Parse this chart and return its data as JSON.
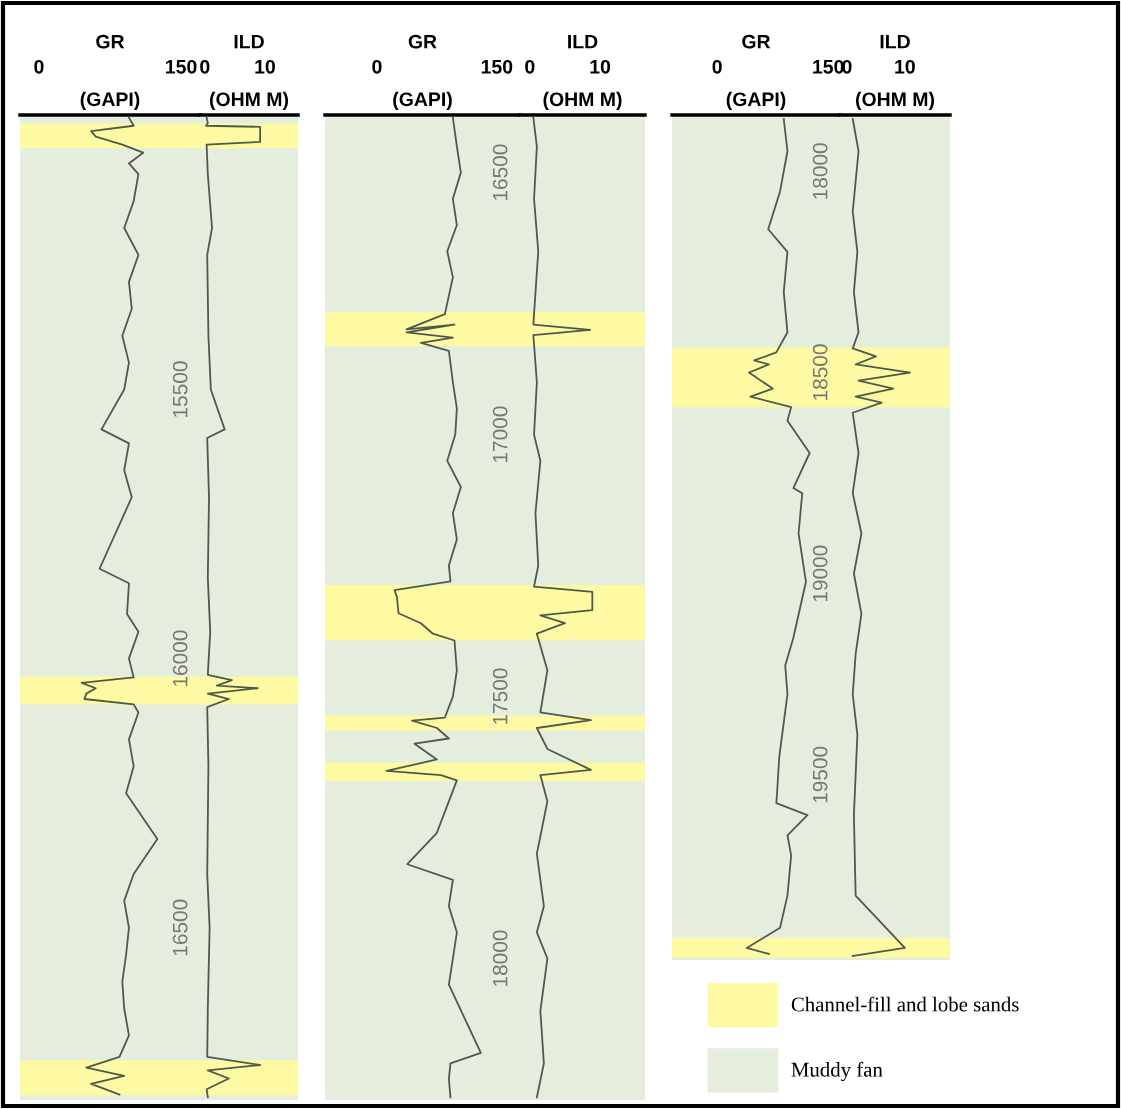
{
  "chart_data": [
    {
      "type": "line",
      "title": "GR",
      "xlabel": "(GAPI)",
      "xlim": [
        -20,
        170
      ],
      "xticks": [
        0,
        150
      ],
      "ylim": [
        16820,
        14990
      ],
      "yticks": [
        15500,
        16000,
        16500
      ],
      "bands": [
        {
          "axis": "y",
          "from": 14990,
          "to": 16820,
          "color": "#e5eede"
        },
        {
          "axis": "y",
          "from": 15006,
          "to": 15052,
          "color": "#fdfaa3"
        },
        {
          "axis": "y",
          "from": 16033,
          "to": 16085,
          "color": "#fdfaa3"
        },
        {
          "axis": "y",
          "from": 16746,
          "to": 16811,
          "color": "#fdfaa3"
        }
      ],
      "series": [
        {
          "color": "#4d5a4d",
          "x": [
            95,
            100,
            55,
            60,
            88,
            110,
            95,
            105,
            100,
            90,
            105,
            95,
            98,
            88,
            95,
            90,
            66,
            95,
            90,
            98,
            64,
            95,
            93,
            105,
            95,
            100,
            45,
            60,
            50,
            48,
            100,
            105,
            95,
            100,
            92,
            125,
            100,
            90,
            95,
            92,
            88,
            90,
            95,
            85,
            50,
            90,
            55,
            85
          ],
          "values": [
            14995,
            15010,
            15020,
            15030,
            15045,
            15060,
            15080,
            15100,
            15150,
            15200,
            15250,
            15300,
            15350,
            15400,
            15450,
            15500,
            15574,
            15600,
            15650,
            15700,
            15833,
            15860,
            15917,
            15950,
            16000,
            16035,
            16045,
            16055,
            16065,
            16075,
            16085,
            16100,
            16150,
            16200,
            16250,
            16335,
            16400,
            16450,
            16500,
            16550,
            16600,
            16650,
            16700,
            16740,
            16760,
            16775,
            16790,
            16810
          ]
        }
      ]
    },
    {
      "type": "line",
      "title": "ILD",
      "xlabel": "(OHM M)",
      "xlim": [
        -0.8,
        15.5
      ],
      "xticks": [
        0,
        10
      ],
      "ylim": [
        16820,
        14990
      ],
      "tick_labels": "x",
      "bands": [
        {
          "axis": "y",
          "from": 14990,
          "to": 16820,
          "color": "#e5eede"
        },
        {
          "axis": "y",
          "from": 15006,
          "to": 15052,
          "color": "#fdfaa3"
        },
        {
          "axis": "y",
          "from": 16033,
          "to": 16085,
          "color": "#fdfaa3"
        },
        {
          "axis": "y",
          "from": 16746,
          "to": 16811,
          "color": "#fdfaa3"
        }
      ],
      "series": [
        {
          "color": "#4d5a4d",
          "x": [
            0.3,
            0.5,
            0.2,
            9.2,
            9.2,
            0.3,
            0.5,
            1.2,
            0.4,
            0.6,
            1.0,
            3.3,
            0.4,
            0.7,
            0.5,
            0.9,
            0.5,
            4.5,
            2,
            8.8,
            0.5,
            4,
            0.4,
            0.6,
            0.4,
            0.8,
            0.5,
            0.4,
            9.2,
            0.5,
            4.0,
            0.3,
            0.5
          ],
          "values": [
            14995,
            15005,
            15010,
            15012,
            15040,
            15045,
            15100,
            15200,
            15250,
            15400,
            15500,
            15574,
            15590,
            15700,
            15850,
            15950,
            16030,
            16040,
            16050,
            16055,
            16065,
            16075,
            16090,
            16200,
            16400,
            16500,
            16650,
            16740,
            16755,
            16765,
            16780,
            16800,
            16815
          ]
        }
      ]
    },
    {
      "type": "line",
      "title": "GR",
      "xlabel": "(GAPI)",
      "xlim": [
        -65,
        179
      ],
      "xticks": [
        0,
        150
      ],
      "ylim": [
        18270,
        16390
      ],
      "yticks": [
        16500,
        17000,
        17500,
        18000
      ],
      "bands": [
        {
          "axis": "y",
          "from": 16390,
          "to": 18270,
          "color": "#e5eede"
        },
        {
          "axis": "y",
          "from": 16766,
          "to": 16831,
          "color": "#fdfaa3"
        },
        {
          "axis": "y",
          "from": 17287,
          "to": 17393,
          "color": "#fdfaa3"
        },
        {
          "axis": "y",
          "from": 17536,
          "to": 17565,
          "color": "#fdfaa3"
        },
        {
          "axis": "y",
          "from": 17626,
          "to": 17661,
          "color": "#fdfaa3"
        }
      ],
      "series": [
        {
          "color": "#4d5a4d",
          "x": [
            95,
            100,
            105,
            95,
            100,
            88,
            95,
            85,
            37,
            97,
            37,
            95,
            55,
            90,
            95,
            100,
            98,
            88,
            105,
            95,
            100,
            90,
            92,
            22,
            25,
            27,
            55,
            70,
            97,
            100,
            95,
            85,
            44,
            75,
            90,
            47,
            75,
            12,
            80,
            100,
            90,
            75,
            38,
            95,
            90,
            100,
            95,
            90,
            130,
            92,
            90,
            92
          ],
          "values": [
            16395,
            16450,
            16500,
            16550,
            16600,
            16650,
            16700,
            16770,
            16799,
            16790,
            16805,
            16815,
            16825,
            16840,
            16900,
            16950,
            17000,
            17050,
            17100,
            17150,
            17200,
            17250,
            17280,
            17297,
            17310,
            17341,
            17360,
            17380,
            17393,
            17450,
            17500,
            17540,
            17546,
            17560,
            17580,
            17590,
            17620,
            17642,
            17650,
            17660,
            17700,
            17760,
            17820,
            17850,
            17900,
            17950,
            18000,
            18050,
            18180,
            18200,
            18230,
            18265
          ]
        }
      ]
    },
    {
      "type": "line",
      "title": "ILD",
      "xlabel": "(OHM M)",
      "xlim": [
        -1.4,
        16.4
      ],
      "xticks": [
        0,
        10
      ],
      "ylim": [
        18270,
        16390
      ],
      "tick_labels": "x",
      "bands": [
        {
          "axis": "y",
          "from": 16390,
          "to": 18270,
          "color": "#e5eede"
        },
        {
          "axis": "y",
          "from": 16766,
          "to": 16831,
          "color": "#fdfaa3"
        },
        {
          "axis": "y",
          "from": 17287,
          "to": 17393,
          "color": "#fdfaa3"
        },
        {
          "axis": "y",
          "from": 17536,
          "to": 17565,
          "color": "#fdfaa3"
        },
        {
          "axis": "y",
          "from": 17626,
          "to": 17661,
          "color": "#fdfaa3"
        }
      ],
      "series": [
        {
          "color": "#4d5a4d",
          "x": [
            0.5,
            1.0,
            0.6,
            1.2,
            0.5,
            8.6,
            0.5,
            1.0,
            0.6,
            1.5,
            0.8,
            1.2,
            0.6,
            8.9,
            8.9,
            1.5,
            5,
            1.0,
            2.5,
            1.5,
            8.7,
            1.0,
            2.5,
            8.7,
            1.5,
            2.5,
            1.0,
            2.0,
            1.0,
            2.5,
            1.5,
            2.0,
            1.0
          ],
          "values": [
            16395,
            16450,
            16550,
            16650,
            16790,
            16800,
            16810,
            16900,
            17000,
            17050,
            17150,
            17250,
            17290,
            17300,
            17335,
            17345,
            17360,
            17380,
            17450,
            17530,
            17545,
            17560,
            17600,
            17640,
            17650,
            17700,
            17800,
            17900,
            17950,
            18000,
            18100,
            18200,
            18265
          ]
        }
      ]
    },
    {
      "type": "line",
      "title": "GR",
      "xlabel": "(GAPI)",
      "xlim": [
        -61,
        166
      ],
      "xticks": [
        0,
        150
      ],
      "ylim": [
        19960,
        17860
      ],
      "yticks": [
        18000,
        18500,
        19000,
        19500
      ],
      "legend": "bottom",
      "bands": [
        {
          "axis": "y",
          "from": 17860,
          "to": 19960,
          "label": "Muddy fan",
          "color": "#e5eede"
        },
        {
          "axis": "y",
          "from": 18437,
          "to": 18586,
          "label": "Channel-fill and lobe sands",
          "color": "#fdfaa3"
        },
        {
          "axis": "y",
          "from": 19905,
          "to": 19955,
          "color": "#fdfaa3"
        }
      ],
      "series": [
        {
          "color": "#4d5a4d",
          "x": [
            90,
            95,
            85,
            69,
            95,
            90,
            95,
            80,
            50,
            70,
            43,
            75,
            45,
            100,
            95,
            125,
            103,
            115,
            110,
            120,
            103,
            92,
            95,
            84,
            81,
            80,
            122,
            95,
            100,
            95,
            85,
            40,
            70
          ],
          "values": [
            17870,
            17950,
            18050,
            18144,
            18200,
            18300,
            18400,
            18450,
            18470,
            18480,
            18500,
            18540,
            18560,
            18586,
            18620,
            18700,
            18787,
            18800,
            18900,
            19020,
            19159,
            19228,
            19300,
            19454,
            19543,
            19570,
            19600,
            19650,
            19700,
            19800,
            19880,
            19930,
            19945
          ]
        }
      ]
    },
    {
      "type": "line",
      "title": "ILD",
      "xlabel": "(OHM M)",
      "xlim": [
        -1.2,
        17.8
      ],
      "xticks": [
        0,
        10
      ],
      "ylim": [
        19960,
        17860
      ],
      "tick_labels": "x",
      "bands": [
        {
          "axis": "y",
          "from": 17860,
          "to": 19960,
          "color": "#e5eede"
        },
        {
          "axis": "y",
          "from": 18437,
          "to": 18586,
          "color": "#fdfaa3"
        },
        {
          "axis": "y",
          "from": 19905,
          "to": 19955,
          "color": "#fdfaa3"
        }
      ],
      "series": [
        {
          "color": "#4d5a4d",
          "x": [
            1.0,
            2.0,
            1.0,
            1.8,
            1.2,
            2.0,
            1.0,
            5,
            1.5,
            10.9,
            2,
            8,
            1.5,
            6,
            1.0,
            2.0,
            1.0,
            2.5,
            1.2,
            2.5,
            1.5,
            1.0,
            1.8,
            1.2,
            1.5,
            10,
            1.0
          ],
          "values": [
            17870,
            17950,
            18100,
            18200,
            18300,
            18400,
            18440,
            18460,
            18480,
            18500,
            18520,
            18540,
            18560,
            18575,
            18600,
            18700,
            18800,
            18900,
            19000,
            19100,
            19200,
            19300,
            19400,
            19600,
            19800,
            19930,
            19950
          ]
        }
      ]
    }
  ]
}
